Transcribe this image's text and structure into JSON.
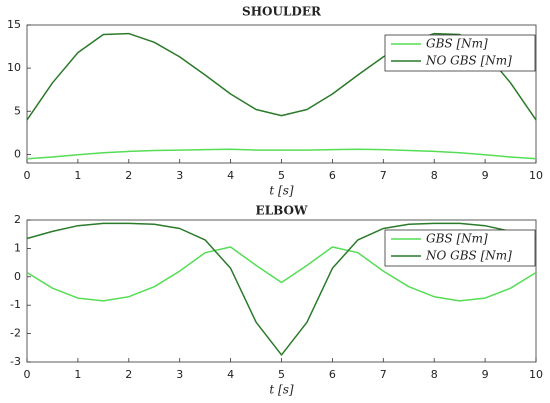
{
  "chart_data": [
    {
      "type": "line",
      "title": "SHOULDER",
      "x_label": "t [s]",
      "x": [
        0,
        0.5,
        1,
        1.5,
        2,
        2.5,
        3,
        3.5,
        4,
        4.5,
        5,
        5.5,
        6,
        6.5,
        7,
        7.5,
        8,
        8.5,
        9,
        9.5,
        10
      ],
      "series": [
        {
          "name": "GBS [Nm]",
          "color": "#55dd55",
          "values": [
            -0.5,
            -0.3,
            -0.05,
            0.2,
            0.35,
            0.45,
            0.5,
            0.55,
            0.6,
            0.5,
            0.5,
            0.5,
            0.55,
            0.6,
            0.55,
            0.45,
            0.35,
            0.2,
            -0.05,
            -0.3,
            -0.5
          ]
        },
        {
          "name": "NO GBS [Nm]",
          "color": "#2a7a2a",
          "values": [
            4.0,
            8.3,
            11.8,
            13.9,
            14.0,
            13.0,
            11.3,
            9.2,
            7.0,
            5.2,
            4.5,
            5.2,
            7.0,
            9.2,
            11.3,
            13.0,
            14.0,
            13.9,
            11.8,
            8.3,
            4.0
          ]
        }
      ],
      "xlim": [
        0,
        10
      ],
      "xticks": [
        0,
        1,
        2,
        3,
        4,
        5,
        6,
        7,
        8,
        9,
        10
      ],
      "ylim": [
        -1,
        15
      ],
      "yticks": [
        0,
        5,
        10,
        15
      ],
      "legend": "upper right"
    },
    {
      "type": "line",
      "title": "ELBOW",
      "x_label": "t [s]",
      "x": [
        0,
        0.5,
        1,
        1.5,
        2,
        2.5,
        3,
        3.5,
        4,
        4.5,
        5,
        5.5,
        6,
        6.5,
        7,
        7.5,
        8,
        8.5,
        9,
        9.5,
        10
      ],
      "series": [
        {
          "name": "GBS [Nm]",
          "color": "#55dd55",
          "values": [
            0.15,
            -0.4,
            -0.75,
            -0.85,
            -0.7,
            -0.35,
            0.2,
            0.85,
            1.05,
            0.4,
            -0.2,
            0.4,
            1.05,
            0.85,
            0.2,
            -0.35,
            -0.7,
            -0.85,
            -0.75,
            -0.4,
            0.15
          ]
        },
        {
          "name": "NO GBS [Nm]",
          "color": "#2a7a2a",
          "values": [
            1.35,
            1.6,
            1.8,
            1.88,
            1.88,
            1.85,
            1.7,
            1.3,
            0.3,
            -1.6,
            -2.75,
            -1.6,
            0.3,
            1.3,
            1.7,
            1.85,
            1.88,
            1.88,
            1.8,
            1.6,
            1.35
          ]
        }
      ],
      "xlim": [
        0,
        10
      ],
      "xticks": [
        0,
        1,
        2,
        3,
        4,
        5,
        6,
        7,
        8,
        9,
        10
      ],
      "ylim": [
        -3,
        2
      ],
      "yticks": [
        -3,
        -2,
        -1,
        0,
        1,
        2
      ],
      "legend": "upper right"
    }
  ]
}
